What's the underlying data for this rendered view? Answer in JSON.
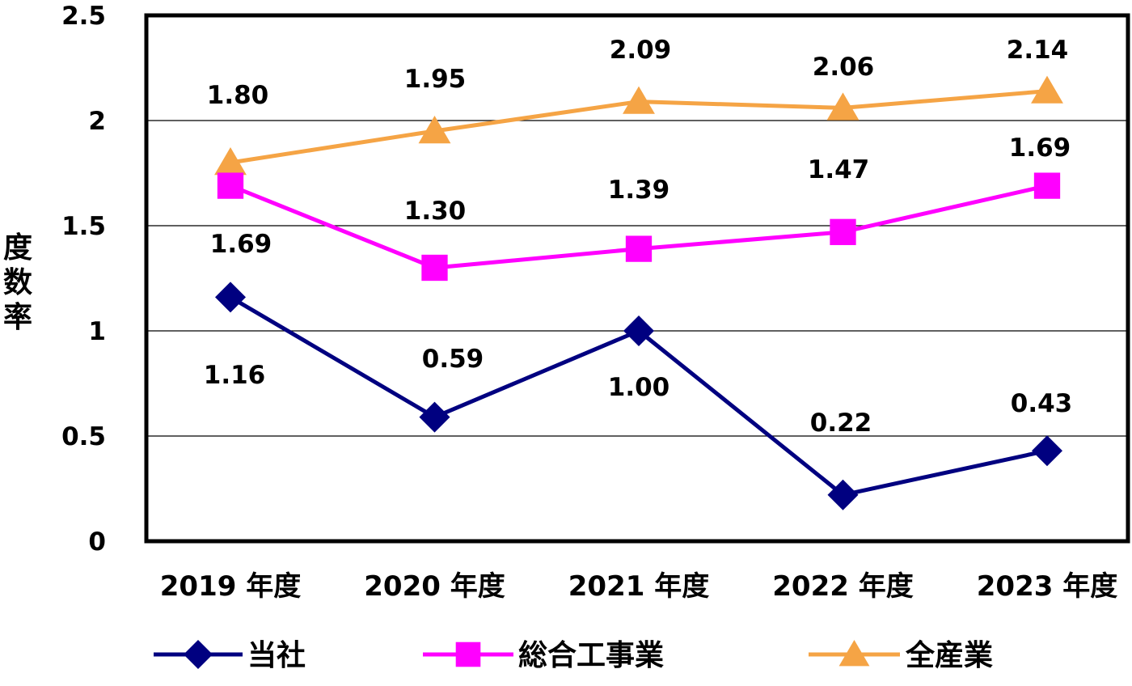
{
  "chart_data": {
    "type": "line",
    "ylabel": "度数率",
    "ylim": [
      0,
      2.5
    ],
    "yticks": [
      "0",
      "0.5",
      "1",
      "1.5",
      "2",
      "2.5"
    ],
    "categories": [
      "2019 年度",
      "2020 年度",
      "2021 年度",
      "2022 年度",
      "2023 年度"
    ],
    "grid": "horizontal",
    "legend_position": "bottom",
    "series": [
      {
        "name": "当社",
        "color": "#000080",
        "marker": "diamond",
        "values": [
          1.16,
          0.59,
          1.0,
          0.22,
          0.43
        ],
        "labels": [
          "1.16",
          "0.59",
          "1.00",
          "0.22",
          "0.43"
        ]
      },
      {
        "name": "総合工事業",
        "color": "#FF00FF",
        "marker": "square",
        "values": [
          1.69,
          1.3,
          1.39,
          1.47,
          1.69
        ],
        "labels": [
          "1.69",
          "1.30",
          "1.39",
          "1.47",
          "1.69"
        ]
      },
      {
        "name": "全産業",
        "color": "#F5A445",
        "marker": "triangle",
        "values": [
          1.8,
          1.95,
          2.09,
          2.06,
          2.14
        ],
        "labels": [
          "1.80",
          "1.95",
          "2.09",
          "2.06",
          "2.14"
        ]
      }
    ]
  }
}
